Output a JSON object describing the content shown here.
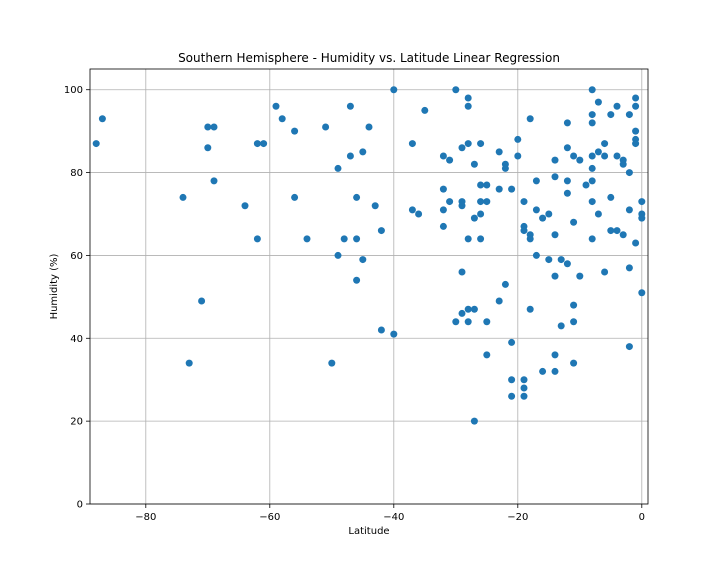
{
  "chart_data": {
    "type": "scatter",
    "title": "Southern Hemisphere - Humidity vs. Latitude Linear Regression",
    "xlabel": "Latitude",
    "ylabel": "Humidity (%)",
    "xlim": [
      -89,
      1
    ],
    "ylim": [
      0,
      105
    ],
    "xticks": [
      -80,
      -60,
      -40,
      -20,
      0
    ],
    "yticks": [
      0,
      20,
      40,
      60,
      80,
      100
    ],
    "xtick_labels": [
      "−80",
      "−60",
      "−40",
      "−20",
      "0"
    ],
    "ytick_labels": [
      "0",
      "20",
      "40",
      "60",
      "80",
      "100"
    ],
    "grid": true,
    "color": "#1f77b4",
    "points": [
      [
        -88,
        87
      ],
      [
        -87,
        93
      ],
      [
        -74,
        74
      ],
      [
        -73,
        34
      ],
      [
        -71,
        49
      ],
      [
        -70,
        91
      ],
      [
        -70,
        86
      ],
      [
        -69,
        91
      ],
      [
        -69,
        78
      ],
      [
        -64,
        72
      ],
      [
        -62,
        87
      ],
      [
        -62,
        64
      ],
      [
        -61,
        87
      ],
      [
        -59,
        96
      ],
      [
        -58,
        93
      ],
      [
        -56,
        90
      ],
      [
        -56,
        74
      ],
      [
        -54,
        64
      ],
      [
        -51,
        91
      ],
      [
        -50,
        34
      ],
      [
        -49,
        81
      ],
      [
        -49,
        60
      ],
      [
        -48,
        64
      ],
      [
        -47,
        96
      ],
      [
        -47,
        84
      ],
      [
        -46,
        74
      ],
      [
        -46,
        64
      ],
      [
        -46,
        54
      ],
      [
        -45,
        85
      ],
      [
        -45,
        59
      ],
      [
        -44,
        91
      ],
      [
        -43,
        72
      ],
      [
        -42,
        66
      ],
      [
        -42,
        42
      ],
      [
        -40,
        100
      ],
      [
        -40,
        41
      ],
      [
        -37,
        87
      ],
      [
        -37,
        71
      ],
      [
        -36,
        70
      ],
      [
        -35,
        95
      ],
      [
        -32,
        84
      ],
      [
        -32,
        76
      ],
      [
        -32,
        71
      ],
      [
        -32,
        67
      ],
      [
        -31,
        83
      ],
      [
        -31,
        73
      ],
      [
        -30,
        100
      ],
      [
        -30,
        44
      ],
      [
        -29,
        86
      ],
      [
        -29,
        73
      ],
      [
        -29,
        72
      ],
      [
        -29,
        56
      ],
      [
        -29,
        46
      ],
      [
        -28,
        98
      ],
      [
        -28,
        96
      ],
      [
        -28,
        87
      ],
      [
        -28,
        64
      ],
      [
        -28,
        47
      ],
      [
        -28,
        44
      ],
      [
        -27,
        82
      ],
      [
        -27,
        69
      ],
      [
        -27,
        47
      ],
      [
        -27,
        20
      ],
      [
        -26,
        87
      ],
      [
        -26,
        77
      ],
      [
        -26,
        73
      ],
      [
        -26,
        70
      ],
      [
        -26,
        64
      ],
      [
        -25,
        77
      ],
      [
        -25,
        73
      ],
      [
        -25,
        44
      ],
      [
        -25,
        36
      ],
      [
        -23,
        85
      ],
      [
        -23,
        76
      ],
      [
        -23,
        49
      ],
      [
        -22,
        82
      ],
      [
        -22,
        81
      ],
      [
        -22,
        53
      ],
      [
        -21,
        76
      ],
      [
        -21,
        39
      ],
      [
        -21,
        30
      ],
      [
        -21,
        26
      ],
      [
        -20,
        88
      ],
      [
        -20,
        84
      ],
      [
        -19,
        73
      ],
      [
        -19,
        67
      ],
      [
        -19,
        66
      ],
      [
        -19,
        30
      ],
      [
        -19,
        28
      ],
      [
        -19,
        26
      ],
      [
        -18,
        93
      ],
      [
        -18,
        65
      ],
      [
        -18,
        64
      ],
      [
        -18,
        47
      ],
      [
        -17,
        78
      ],
      [
        -17,
        71
      ],
      [
        -17,
        60
      ],
      [
        -16,
        69
      ],
      [
        -16,
        32
      ],
      [
        -15,
        70
      ],
      [
        -15,
        59
      ],
      [
        -14,
        83
      ],
      [
        -14,
        79
      ],
      [
        -14,
        65
      ],
      [
        -14,
        55
      ],
      [
        -14,
        36
      ],
      [
        -14,
        32
      ],
      [
        -13,
        59
      ],
      [
        -13,
        43
      ],
      [
        -12,
        92
      ],
      [
        -12,
        86
      ],
      [
        -12,
        78
      ],
      [
        -12,
        75
      ],
      [
        -12,
        58
      ],
      [
        -11,
        84
      ],
      [
        -11,
        68
      ],
      [
        -11,
        48
      ],
      [
        -11,
        44
      ],
      [
        -11,
        34
      ],
      [
        -10,
        83
      ],
      [
        -10,
        55
      ],
      [
        -9,
        77
      ],
      [
        -8,
        100
      ],
      [
        -8,
        94
      ],
      [
        -8,
        92
      ],
      [
        -8,
        84
      ],
      [
        -8,
        81
      ],
      [
        -8,
        78
      ],
      [
        -8,
        73
      ],
      [
        -8,
        64
      ],
      [
        -7,
        97
      ],
      [
        -7,
        85
      ],
      [
        -7,
        70
      ],
      [
        -6,
        87
      ],
      [
        -6,
        84
      ],
      [
        -6,
        56
      ],
      [
        -5,
        94
      ],
      [
        -5,
        74
      ],
      [
        -5,
        66
      ],
      [
        -4,
        96
      ],
      [
        -4,
        84
      ],
      [
        -4,
        66
      ],
      [
        -3,
        83
      ],
      [
        -3,
        82
      ],
      [
        -3,
        65
      ],
      [
        -2,
        94
      ],
      [
        -2,
        80
      ],
      [
        -2,
        71
      ],
      [
        -2,
        57
      ],
      [
        -2,
        38
      ],
      [
        -1,
        98
      ],
      [
        -1,
        96
      ],
      [
        -1,
        90
      ],
      [
        -1,
        88
      ],
      [
        -1,
        87
      ],
      [
        -1,
        63
      ],
      [
        0,
        73
      ],
      [
        0,
        70
      ],
      [
        0,
        69
      ],
      [
        0,
        51
      ]
    ]
  }
}
